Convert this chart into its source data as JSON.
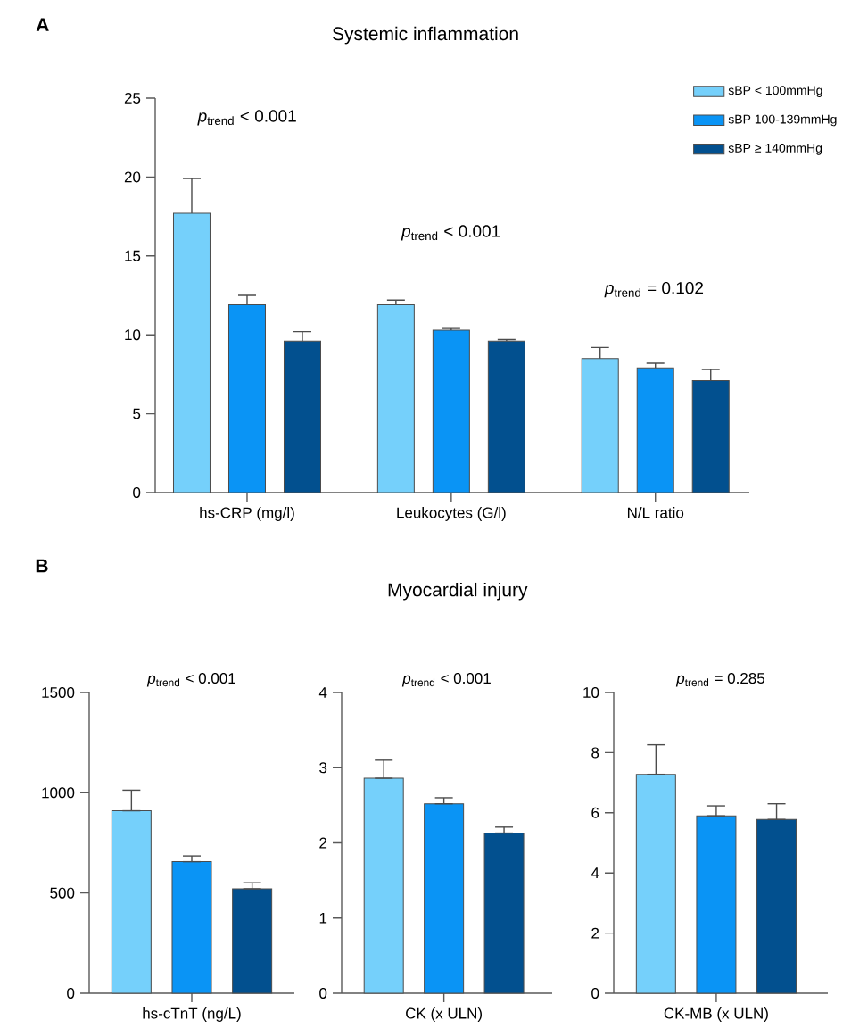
{
  "chart_data": [
    {
      "type": "bar",
      "title": "Systemic inflammation",
      "categories": [
        "hs-CRP (mg/l)",
        "Leukocytes (G/l)",
        "N/L ratio"
      ],
      "series": [
        {
          "name": "sBP < 100mmHg",
          "color": "#75d0fb",
          "values": [
            17.7,
            11.9,
            8.5
          ],
          "errors": [
            [
              17.7,
              19.9
            ],
            [
              11.9,
              12.2
            ],
            [
              8.5,
              9.2
            ]
          ]
        },
        {
          "name": "sBP 100-139mmHg",
          "color": "#0a94f5",
          "values": [
            11.9,
            10.3,
            7.9
          ],
          "errors": [
            [
              11.9,
              12.5
            ],
            [
              10.3,
              10.4
            ],
            [
              7.9,
              8.2
            ]
          ]
        },
        {
          "name": "sBP ≥ 140mmHg",
          "color": "#02508f",
          "values": [
            9.6,
            9.6,
            7.1
          ],
          "errors": [
            [
              9.6,
              10.2
            ],
            [
              9.6,
              9.7
            ],
            [
              7.1,
              7.8
            ]
          ]
        }
      ],
      "ylim": [
        0,
        25
      ],
      "yticks": [
        0,
        5,
        10,
        15,
        20,
        25
      ],
      "legend": "top right",
      "annotations": [
        "A",
        "*p*$_{trend}$ < 0.001",
        "*p*$_{trend}$ < 0.001",
        "*p*$_{trend}$ = 0.102"
      ]
    },
    {
      "type": "bar",
      "categories": [
        null,
        "hs-cTnT (ng/L)",
        null
      ],
      "values": [
        910,
        656,
        521
      ],
      "colors": [
        "#75d0fb",
        "#0a94f5",
        "#02508f"
      ],
      "errors": [
        [
          910,
          1013
        ],
        [
          656,
          685
        ],
        [
          521,
          551
        ]
      ],
      "ylim": [
        0,
        1500
      ],
      "yticks": [
        0,
        500,
        1000,
        1500
      ],
      "annotations": [
        "B",
        "*p*$_{trend}$ < 0.001"
      ]
    },
    {
      "type": "bar",
      "title": "Myocardial injury",
      "categories": [
        null,
        "CK (x ULN)",
        null
      ],
      "values": [
        2.86,
        2.52,
        2.13
      ],
      "colors": [
        "#75d0fb",
        "#0a94f5",
        "#02508f"
      ],
      "errors": [
        [
          2.86,
          3.1
        ],
        [
          2.52,
          2.6
        ],
        [
          2.13,
          2.21
        ]
      ],
      "ylim": [
        0,
        4
      ],
      "yticks": [
        0,
        1,
        2,
        3,
        4
      ],
      "annotations": [
        "*p*$_{trend}$ < 0.001"
      ]
    },
    {
      "type": "bar",
      "categories": [
        null,
        "CK-MB (x ULN)",
        null
      ],
      "values": [
        7.28,
        5.9,
        5.78
      ],
      "colors": [
        "#75d0fb",
        "#0a94f5",
        "#02508f"
      ],
      "errors": [
        [
          7.28,
          8.26
        ],
        [
          5.9,
          6.23
        ],
        [
          5.78,
          6.3
        ]
      ],
      "ylim": [
        0,
        10
      ],
      "yticks": [
        0,
        2,
        4,
        6,
        8,
        10
      ],
      "annotations": [
        "*p*$_{trend}$ = 0.285"
      ]
    }
  ]
}
